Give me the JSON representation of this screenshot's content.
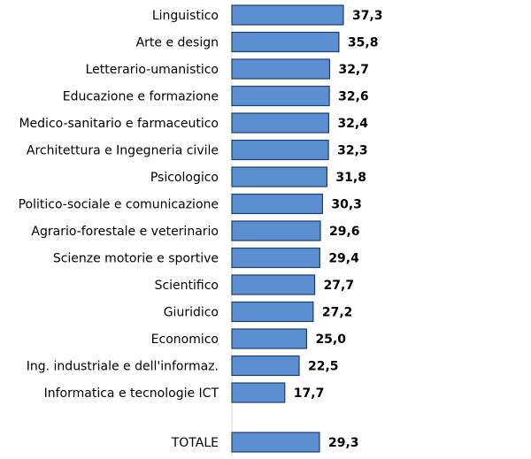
{
  "chart_data": {
    "type": "bar",
    "orientation": "horizontal",
    "title": "",
    "xlabel": "",
    "ylabel": "",
    "grid": false,
    "legend": "none",
    "bar_color": "#5b8fd1",
    "bar_border_color": "#1f3e66",
    "categories": [
      "Linguistico",
      "Arte e design",
      "Letterario-umanistico",
      "Educazione e formazione",
      "Medico-sanitario e farmaceutico",
      "Architettura e Ingegneria civile",
      "Psicologico",
      "Politico-sociale e comunicazione",
      "Agrario-forestale e veterinario",
      "Scienze motorie e sportive",
      "Scientifico",
      "Giuridico",
      "Economico",
      "Ing. industriale e dell'informaz.",
      "Informatica e tecnologie ICT",
      "TOTALE"
    ],
    "values": [
      37.3,
      35.8,
      32.7,
      32.6,
      32.4,
      32.3,
      31.8,
      30.3,
      29.6,
      29.4,
      27.7,
      27.2,
      25.0,
      22.5,
      17.7,
      29.3
    ],
    "value_labels": [
      "37,3",
      "35,8",
      "32,7",
      "32,6",
      "32,4",
      "32,3",
      "31,8",
      "30,3",
      "29,6",
      "29,4",
      "27,7",
      "27,2",
      "25,0",
      "22,5",
      "17,7",
      "29,3"
    ],
    "xlim": [
      0,
      100
    ]
  }
}
